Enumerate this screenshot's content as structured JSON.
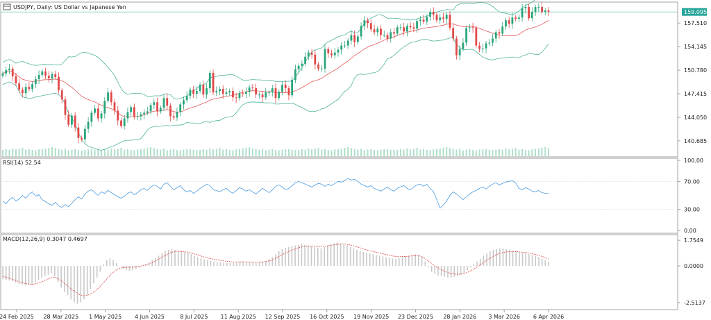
{
  "colors": {
    "bull": "#2aa57a",
    "bear": "#e04848",
    "band": "#4fb39a",
    "mid_band": "#e25858",
    "rsi_line": "#4a9be0",
    "macd_signal": "#e24a4a",
    "hist": "#c8c8c8",
    "volume": "#aedfc8",
    "price_tag": "#26a69a",
    "grid": "#d6d6d6"
  },
  "chart_data": [
    {
      "type": "candlestick",
      "name": "price",
      "symbol_label": "USDJPY, Daily:  US Dollar vs Japanese Yen",
      "y_ticks": [
        "157.510",
        "154.145",
        "150.780",
        "147.415",
        "144.050",
        "140.685"
      ],
      "y_tick_values": [
        157.51,
        154.145,
        150.78,
        147.415,
        144.05,
        140.685
      ],
      "ylim": [
        138.5,
        160.4
      ],
      "last_price_label": "159.095",
      "last_price": 159.095,
      "overlays": [
        "Bollinger Bands",
        "middle band"
      ],
      "x_ticks": [
        "24 Feb 2025",
        "28 Mar 2025",
        "1 May 2025",
        "4 Jun 2025",
        "8 Jul 2025",
        "11 Aug 2025",
        "12 Sep 2025",
        "16 Oct 2025",
        "19 Nov 2025",
        "23 Dec 2025",
        "28 Jan 2026",
        "3 Mar 2026",
        "6 Apr 2026"
      ],
      "closes": [
        150.3,
        150.8,
        151.0,
        149.9,
        148.9,
        148.0,
        147.5,
        148.4,
        148.1,
        148.8,
        149.5,
        150.1,
        150.6,
        150.0,
        149.6,
        150.2,
        149.8,
        147.9,
        146.6,
        144.4,
        143.0,
        144.3,
        142.6,
        141.1,
        140.9,
        142.4,
        143.4,
        144.7,
        145.3,
        143.9,
        144.6,
        146.4,
        147.6,
        146.2,
        145.0,
        143.6,
        142.8,
        143.9,
        144.8,
        145.5,
        144.1,
        144.2,
        144.5,
        144.7,
        144.9,
        145.8,
        146.2,
        144.9,
        145.4,
        146.8,
        145.7,
        144.2,
        144.0,
        144.8,
        145.9,
        146.5,
        147.1,
        148.0,
        147.4,
        147.8,
        148.7,
        147.3,
        148.2,
        150.4,
        147.6,
        147.8,
        148.1,
        147.4,
        147.6,
        147.8,
        146.9,
        146.8,
        147.5,
        147.4,
        147.7,
        148.3,
        148.2,
        147.3,
        147.3,
        146.9,
        147.6,
        147.6,
        148.2,
        146.8,
        147.7,
        148.7,
        148.2,
        147.2,
        149.4,
        150.9,
        151.4,
        151.7,
        152.7,
        153.3,
        153.0,
        151.6,
        151.0,
        151.0,
        153.8,
        153.2,
        152.9,
        153.3,
        153.7,
        154.3,
        154.3,
        155.0,
        155.8,
        154.8,
        155.6,
        157.1,
        157.9,
        157.5,
        156.6,
        156.2,
        156.7,
        155.8,
        155.8,
        155.3,
        156.2,
        156.0,
        156.9,
        156.9,
        156.3,
        157.1,
        156.9,
        156.7,
        157.8,
        158.0,
        157.7,
        158.4,
        159.1,
        158.7,
        157.9,
        158.3,
        158.1,
        158.7,
        156.8,
        155.3,
        152.9,
        153.8,
        154.7,
        156.8,
        156.9,
        156.8,
        154.3,
        153.8,
        153.9,
        154.6,
        154.7,
        155.3,
        156.2,
        156.0,
        157.0,
        157.9,
        157.4,
        158.3,
        158.1,
        158.3,
        159.6,
        159.8,
        158.2,
        159.1,
        159.8,
        159.8,
        159.1,
        159.3,
        159.1
      ],
      "volume_scale": [
        0.55,
        0.7,
        0.6,
        0.8,
        0.65,
        0.75,
        0.9,
        0.6,
        0.7,
        0.55,
        0.5,
        0.65,
        0.7,
        0.8,
        0.9,
        1.0,
        0.85,
        0.7,
        0.6,
        0.75,
        0.5,
        0.6,
        0.7,
        0.55,
        0.5,
        0.6,
        0.65,
        0.7,
        0.6,
        0.55
      ]
    },
    {
      "type": "line",
      "name": "rsi",
      "label": "RSI(14) 52.54",
      "y_ticks": [
        "100.00",
        "70.00",
        "30.00",
        "0.00"
      ],
      "y_tick_values": [
        100,
        70,
        30,
        0
      ],
      "ylim": [
        0,
        100
      ],
      "levels": [
        70,
        30
      ],
      "values": [
        42,
        38,
        44,
        47,
        42,
        45,
        50,
        46,
        52,
        55,
        49,
        51,
        44,
        41,
        38,
        36,
        40,
        35,
        33,
        37,
        34,
        39,
        44,
        48,
        45,
        52,
        56,
        58,
        54,
        50,
        55,
        53,
        57,
        54,
        51,
        48,
        46,
        49,
        53,
        55,
        51,
        54,
        58,
        60,
        57,
        62,
        65,
        63,
        59,
        66,
        68,
        63,
        58,
        61,
        64,
        58,
        55,
        57,
        53,
        56,
        60,
        63,
        66,
        64,
        58,
        57,
        55,
        58,
        60,
        56,
        53,
        57,
        61,
        59,
        56,
        58,
        55,
        52,
        56,
        60,
        57,
        54,
        58,
        63,
        65,
        62,
        58,
        60,
        64,
        68,
        70,
        68,
        66,
        64,
        62,
        65,
        67,
        66,
        63,
        66,
        64,
        67,
        70,
        69,
        71,
        74,
        72,
        73,
        70,
        66,
        64,
        62,
        64,
        60,
        58,
        56,
        59,
        62,
        58,
        56,
        60,
        62,
        64,
        60,
        58,
        62,
        65,
        66,
        63,
        66,
        60,
        55,
        44,
        32,
        36,
        42,
        50,
        55,
        52,
        48,
        44,
        48,
        52,
        55,
        57,
        60,
        62,
        59,
        63,
        66,
        68,
        65,
        67,
        69,
        70,
        71,
        68,
        60,
        58,
        61,
        59,
        56,
        55,
        57,
        54,
        53,
        52.54
      ]
    },
    {
      "type": "bar+line",
      "name": "macd",
      "label": "MACD(12,26,9) 0.3047 0.4697",
      "y_ticks": [
        "1.7549",
        "0.0000",
        "-2.5137"
      ],
      "y_tick_values": [
        1.7549,
        0,
        -2.5137
      ],
      "ylim": [
        -2.9,
        2.0
      ],
      "histogram": [
        -0.9,
        -0.95,
        -1.0,
        -1.05,
        -1.15,
        -1.25,
        -1.3,
        -1.35,
        -1.3,
        -1.25,
        -1.1,
        -0.95,
        -0.8,
        -0.7,
        -0.6,
        -0.5,
        -0.7,
        -1.1,
        -1.5,
        -1.8,
        -2.0,
        -2.3,
        -2.5,
        -2.6,
        -2.5,
        -2.3,
        -2.0,
        -1.6,
        -1.2,
        -0.8,
        -0.4,
        0.1,
        0.4,
        0.5,
        0.4,
        0.2,
        0.0,
        -0.2,
        -0.3,
        -0.35,
        -0.3,
        -0.2,
        -0.1,
        0.0,
        0.1,
        0.25,
        0.4,
        0.55,
        0.7,
        0.85,
        1.0,
        1.1,
        1.15,
        1.1,
        1.05,
        1.0,
        0.95,
        0.9,
        0.8,
        0.7,
        0.6,
        0.5,
        0.45,
        0.4,
        0.35,
        0.3,
        0.28,
        0.25,
        0.22,
        0.2,
        0.2,
        0.22,
        0.25,
        0.3,
        0.3,
        0.28,
        0.25,
        0.22,
        0.2,
        0.25,
        0.3,
        0.35,
        0.45,
        0.6,
        0.8,
        1.0,
        1.15,
        1.25,
        1.3,
        1.35,
        1.4,
        1.45,
        1.5,
        1.45,
        1.4,
        1.35,
        1.3,
        1.25,
        1.2,
        1.3,
        1.4,
        1.5,
        1.55,
        1.6,
        1.55,
        1.5,
        1.4,
        1.3,
        1.2,
        1.1,
        1.0,
        0.95,
        0.9,
        0.85,
        0.8,
        0.75,
        0.7,
        0.65,
        0.6,
        0.55,
        0.5,
        0.5,
        0.55,
        0.6,
        0.65,
        0.7,
        0.75,
        0.8,
        0.75,
        0.6,
        0.3,
        -0.1,
        -0.4,
        -0.55,
        -0.65,
        -0.7,
        -0.75,
        -0.8,
        -0.8,
        -0.75,
        -0.7,
        -0.6,
        -0.5,
        -0.3,
        -0.1,
        0.1,
        0.3,
        0.5,
        0.7,
        0.85,
        1.0,
        1.1,
        1.15,
        1.2,
        1.2,
        1.15,
        1.1,
        1.05,
        1.0,
        0.95,
        0.9,
        0.85,
        0.8,
        0.75,
        0.7,
        0.6,
        0.5,
        0.4,
        0.3
      ],
      "signal": [
        -0.7,
        -0.78,
        -0.85,
        -0.92,
        -1.0,
        -1.08,
        -1.14,
        -1.2,
        -1.24,
        -1.26,
        -1.24,
        -1.18,
        -1.1,
        -1.0,
        -0.9,
        -0.8,
        -0.78,
        -0.85,
        -1.0,
        -1.18,
        -1.35,
        -1.55,
        -1.72,
        -1.88,
        -2.0,
        -2.05,
        -2.03,
        -1.95,
        -1.82,
        -1.65,
        -1.45,
        -1.2,
        -0.95,
        -0.7,
        -0.48,
        -0.3,
        -0.18,
        -0.12,
        -0.1,
        -0.1,
        -0.1,
        -0.08,
        -0.05,
        0.0,
        0.05,
        0.12,
        0.2,
        0.3,
        0.42,
        0.55,
        0.68,
        0.8,
        0.9,
        0.97,
        1.0,
        1.0,
        0.98,
        0.95,
        0.9,
        0.84,
        0.78,
        0.7,
        0.63,
        0.57,
        0.52,
        0.47,
        0.43,
        0.39,
        0.35,
        0.32,
        0.3,
        0.28,
        0.27,
        0.27,
        0.28,
        0.28,
        0.27,
        0.26,
        0.25,
        0.25,
        0.26,
        0.28,
        0.32,
        0.38,
        0.47,
        0.58,
        0.7,
        0.82,
        0.93,
        1.03,
        1.12,
        1.2,
        1.27,
        1.32,
        1.35,
        1.36,
        1.36,
        1.35,
        1.33,
        1.33,
        1.35,
        1.38,
        1.42,
        1.46,
        1.49,
        1.5,
        1.49,
        1.46,
        1.41,
        1.35,
        1.28,
        1.21,
        1.14,
        1.08,
        1.02,
        0.97,
        0.91,
        0.86,
        0.81,
        0.76,
        0.71,
        0.67,
        0.65,
        0.64,
        0.64,
        0.65,
        0.67,
        0.7,
        0.71,
        0.69,
        0.61,
        0.47,
        0.29,
        0.12,
        -0.04,
        -0.17,
        -0.29,
        -0.39,
        -0.47,
        -0.53,
        -0.56,
        -0.57,
        -0.56,
        -0.51,
        -0.43,
        -0.32,
        -0.19,
        -0.05,
        0.1,
        0.25,
        0.4,
        0.54,
        0.66,
        0.77,
        0.86,
        0.92,
        0.96,
        0.98,
        0.99,
        0.98,
        0.96,
        0.94,
        0.91,
        0.87,
        0.83,
        0.78,
        0.72,
        0.65,
        0.57,
        0.47
      ]
    }
  ]
}
